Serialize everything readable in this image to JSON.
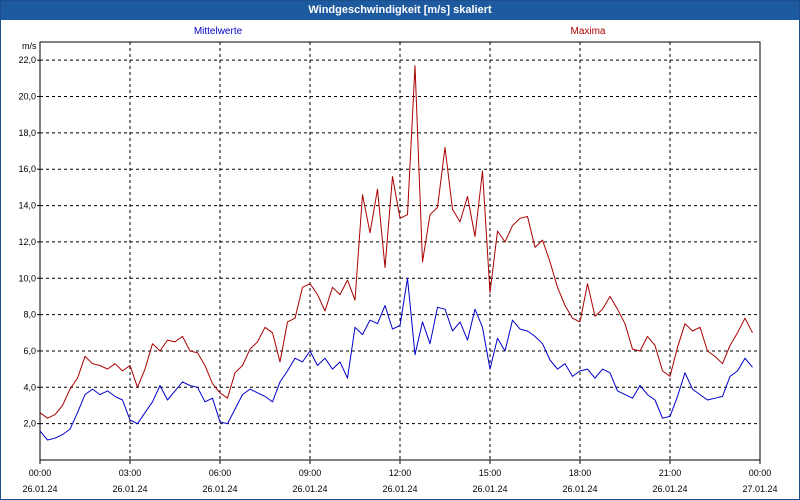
{
  "window": {
    "title": "Windgeschwindigkeit [m/s] skaliert"
  },
  "chart_data": {
    "type": "line",
    "title": "Windgeschwindigkeit [m/s] skaliert",
    "ylabel": "m/s",
    "xlabel": "",
    "ylim": [
      0,
      23
    ],
    "xlim": [
      0,
      24
    ],
    "grid": true,
    "legend_placement": "top",
    "y_ticks": [
      "2,0",
      "4,0",
      "6,0",
      "8,0",
      "10,0",
      "12,0",
      "14,0",
      "16,0",
      "18,0",
      "20,0",
      "22,0"
    ],
    "x_ticks": [
      {
        "time": "00:00",
        "date": "26.01.24"
      },
      {
        "time": "03:00",
        "date": "26.01.24"
      },
      {
        "time": "06:00",
        "date": "26.01.24"
      },
      {
        "time": "09:00",
        "date": "26.01.24"
      },
      {
        "time": "12:00",
        "date": "26.01.24"
      },
      {
        "time": "15:00",
        "date": "26.01.24"
      },
      {
        "time": "18:00",
        "date": "26.01.24"
      },
      {
        "time": "21:00",
        "date": "26.01.24"
      },
      {
        "time": "00:00",
        "date": "27.01.24"
      }
    ],
    "series": [
      {
        "name": "Mittelwerte",
        "color": "#0000cc",
        "points": [
          [
            0,
            1.6
          ],
          [
            0.25,
            1.1
          ],
          [
            0.5,
            1.2
          ],
          [
            0.75,
            1.4
          ],
          [
            1,
            1.7
          ],
          [
            1.25,
            2.6
          ],
          [
            1.5,
            3.6
          ],
          [
            1.75,
            3.9
          ],
          [
            2,
            3.6
          ],
          [
            2.25,
            3.8
          ],
          [
            2.5,
            3.5
          ],
          [
            2.75,
            3.3
          ],
          [
            3,
            2.2
          ],
          [
            3.25,
            2.0
          ],
          [
            3.5,
            2.6
          ],
          [
            3.75,
            3.2
          ],
          [
            4,
            4.1
          ],
          [
            4.25,
            3.3
          ],
          [
            4.5,
            3.8
          ],
          [
            4.75,
            4.3
          ],
          [
            5,
            4.1
          ],
          [
            5.25,
            4.0
          ],
          [
            5.5,
            3.2
          ],
          [
            5.75,
            3.4
          ],
          [
            6,
            2.1
          ],
          [
            6.25,
            2.0
          ],
          [
            6.5,
            2.8
          ],
          [
            6.75,
            3.6
          ],
          [
            7,
            3.9
          ],
          [
            7.25,
            3.7
          ],
          [
            7.5,
            3.5
          ],
          [
            7.75,
            3.2
          ],
          [
            8,
            4.3
          ],
          [
            8.25,
            4.9
          ],
          [
            8.5,
            5.6
          ],
          [
            8.75,
            5.4
          ],
          [
            9,
            6.0
          ],
          [
            9.25,
            5.2
          ],
          [
            9.5,
            5.6
          ],
          [
            9.75,
            5.0
          ],
          [
            10,
            5.4
          ],
          [
            10.25,
            4.5
          ],
          [
            10.5,
            7.3
          ],
          [
            10.75,
            6.9
          ],
          [
            11,
            7.7
          ],
          [
            11.25,
            7.5
          ],
          [
            11.5,
            8.5
          ],
          [
            11.75,
            7.2
          ],
          [
            12,
            7.4
          ],
          [
            12.25,
            10.0
          ],
          [
            12.5,
            5.8
          ],
          [
            12.75,
            7.6
          ],
          [
            13,
            6.4
          ],
          [
            13.25,
            8.4
          ],
          [
            13.5,
            8.3
          ],
          [
            13.75,
            7.1
          ],
          [
            14,
            7.6
          ],
          [
            14.25,
            6.6
          ],
          [
            14.5,
            8.3
          ],
          [
            14.75,
            7.3
          ],
          [
            15,
            5.0
          ],
          [
            15.25,
            6.7
          ],
          [
            15.5,
            6.0
          ],
          [
            15.75,
            7.7
          ],
          [
            16,
            7.2
          ],
          [
            16.25,
            7.1
          ],
          [
            16.5,
            6.8
          ],
          [
            16.75,
            6.4
          ],
          [
            17,
            5.5
          ],
          [
            17.25,
            5.0
          ],
          [
            17.5,
            5.3
          ],
          [
            17.75,
            4.6
          ],
          [
            18,
            4.9
          ],
          [
            18.25,
            5.0
          ],
          [
            18.5,
            4.5
          ],
          [
            18.75,
            5.0
          ],
          [
            19,
            4.8
          ],
          [
            19.25,
            3.8
          ],
          [
            19.5,
            3.6
          ],
          [
            19.75,
            3.4
          ],
          [
            20,
            4.1
          ],
          [
            20.25,
            3.6
          ],
          [
            20.5,
            3.3
          ],
          [
            20.75,
            2.3
          ],
          [
            21,
            2.4
          ],
          [
            21.25,
            3.5
          ],
          [
            21.5,
            4.8
          ],
          [
            21.75,
            3.9
          ],
          [
            22,
            3.6
          ],
          [
            22.25,
            3.3
          ],
          [
            22.5,
            3.4
          ],
          [
            22.75,
            3.5
          ],
          [
            23,
            4.6
          ],
          [
            23.25,
            4.9
          ],
          [
            23.5,
            5.6
          ],
          [
            23.75,
            5.1
          ]
        ]
      },
      {
        "name": "Maxima",
        "color": "#aa0000",
        "points": [
          [
            0,
            2.6
          ],
          [
            0.25,
            2.3
          ],
          [
            0.5,
            2.5
          ],
          [
            0.75,
            3.0
          ],
          [
            1,
            3.9
          ],
          [
            1.25,
            4.5
          ],
          [
            1.5,
            5.7
          ],
          [
            1.75,
            5.3
          ],
          [
            2,
            5.2
          ],
          [
            2.25,
            5.0
          ],
          [
            2.5,
            5.3
          ],
          [
            2.75,
            4.9
          ],
          [
            3,
            5.2
          ],
          [
            3.25,
            4.0
          ],
          [
            3.5,
            5.0
          ],
          [
            3.75,
            6.4
          ],
          [
            4,
            6.0
          ],
          [
            4.25,
            6.6
          ],
          [
            4.5,
            6.5
          ],
          [
            4.75,
            6.8
          ],
          [
            5,
            6.0
          ],
          [
            5.25,
            5.9
          ],
          [
            5.5,
            5.2
          ],
          [
            5.75,
            4.2
          ],
          [
            6,
            3.7
          ],
          [
            6.25,
            3.4
          ],
          [
            6.5,
            4.8
          ],
          [
            6.75,
            5.2
          ],
          [
            7,
            6.1
          ],
          [
            7.25,
            6.5
          ],
          [
            7.5,
            7.3
          ],
          [
            7.75,
            7.0
          ],
          [
            8,
            5.4
          ],
          [
            8.25,
            7.6
          ],
          [
            8.5,
            7.8
          ],
          [
            8.75,
            9.5
          ],
          [
            9,
            9.7
          ],
          [
            9.25,
            9.1
          ],
          [
            9.5,
            8.2
          ],
          [
            9.75,
            9.5
          ],
          [
            10,
            9.1
          ],
          [
            10.25,
            9.9
          ],
          [
            10.5,
            8.8
          ],
          [
            10.75,
            14.6
          ],
          [
            11,
            12.5
          ],
          [
            11.25,
            14.9
          ],
          [
            11.5,
            10.6
          ],
          [
            11.75,
            15.6
          ],
          [
            12,
            13.3
          ],
          [
            12.25,
            13.5
          ],
          [
            12.5,
            21.7
          ],
          [
            12.75,
            10.9
          ],
          [
            13,
            13.5
          ],
          [
            13.25,
            13.9
          ],
          [
            13.5,
            17.2
          ],
          [
            13.75,
            13.8
          ],
          [
            14,
            13.1
          ],
          [
            14.25,
            14.5
          ],
          [
            14.5,
            12.3
          ],
          [
            14.75,
            15.9
          ],
          [
            15,
            9.2
          ],
          [
            15.25,
            12.6
          ],
          [
            15.5,
            12.0
          ],
          [
            15.75,
            12.9
          ],
          [
            16,
            13.3
          ],
          [
            16.25,
            13.4
          ],
          [
            16.5,
            11.7
          ],
          [
            16.75,
            12.1
          ],
          [
            17,
            10.9
          ],
          [
            17.25,
            9.5
          ],
          [
            17.5,
            8.5
          ],
          [
            17.75,
            7.8
          ],
          [
            18,
            7.6
          ],
          [
            18.25,
            9.7
          ],
          [
            18.5,
            7.9
          ],
          [
            18.75,
            8.3
          ],
          [
            19,
            9.0
          ],
          [
            19.25,
            8.3
          ],
          [
            19.5,
            7.5
          ],
          [
            19.75,
            6.1
          ],
          [
            20,
            6.0
          ],
          [
            20.25,
            6.8
          ],
          [
            20.5,
            6.3
          ],
          [
            20.75,
            4.9
          ],
          [
            21,
            4.6
          ],
          [
            21.25,
            6.2
          ],
          [
            21.5,
            7.5
          ],
          [
            21.75,
            7.1
          ],
          [
            22,
            7.3
          ],
          [
            22.25,
            6.0
          ],
          [
            22.5,
            5.7
          ],
          [
            22.75,
            5.3
          ],
          [
            23,
            6.3
          ],
          [
            23.25,
            7.0
          ],
          [
            23.5,
            7.8
          ],
          [
            23.75,
            7.0
          ]
        ]
      }
    ]
  }
}
